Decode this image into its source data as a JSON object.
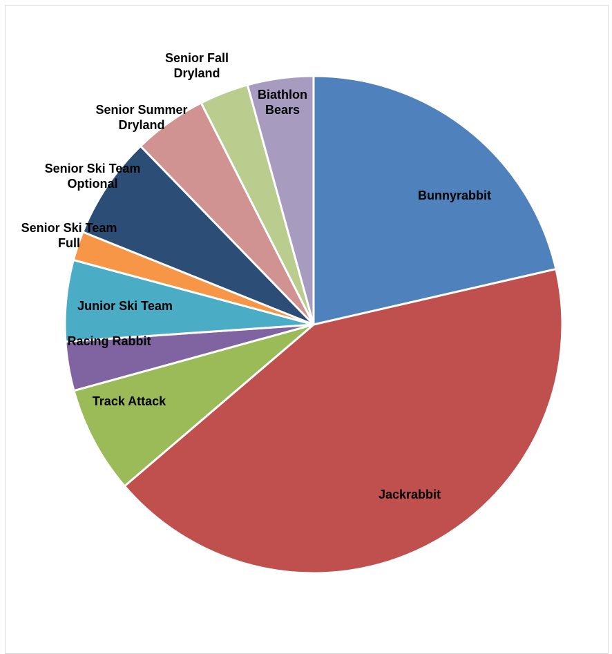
{
  "chart_data": {
    "type": "pie",
    "start_angle_deg": 0,
    "direction": "clockwise",
    "slices": [
      {
        "label": "Bunnyrabbit",
        "value": 21.5,
        "color": "#4F81BD"
      },
      {
        "label": "Jackrabbit",
        "value": 42.5,
        "color": "#C0504D"
      },
      {
        "label": "Track Attack",
        "value": 7.0,
        "color": "#9BBB59"
      },
      {
        "label": "Racing Rabbit",
        "value": 3.2,
        "color": "#8064A2"
      },
      {
        "label": "Junior Ski Team",
        "value": 5.3,
        "color": "#4BACC6"
      },
      {
        "label": "Senior Ski Team Full",
        "value": 1.9,
        "color": "#F79646"
      },
      {
        "label": "Senior Ski Team Optional",
        "value": 6.7,
        "color": "#2C4D75"
      },
      {
        "label": "Senior Summer Dryland",
        "value": 4.8,
        "color": "#D19392"
      },
      {
        "label": "Senior Fall Dryland",
        "value": 3.2,
        "color": "#BACD8F"
      },
      {
        "label": "Biathlon Bears",
        "value": 4.3,
        "color": "#A79BC0"
      }
    ],
    "legend": "none",
    "title": ""
  }
}
